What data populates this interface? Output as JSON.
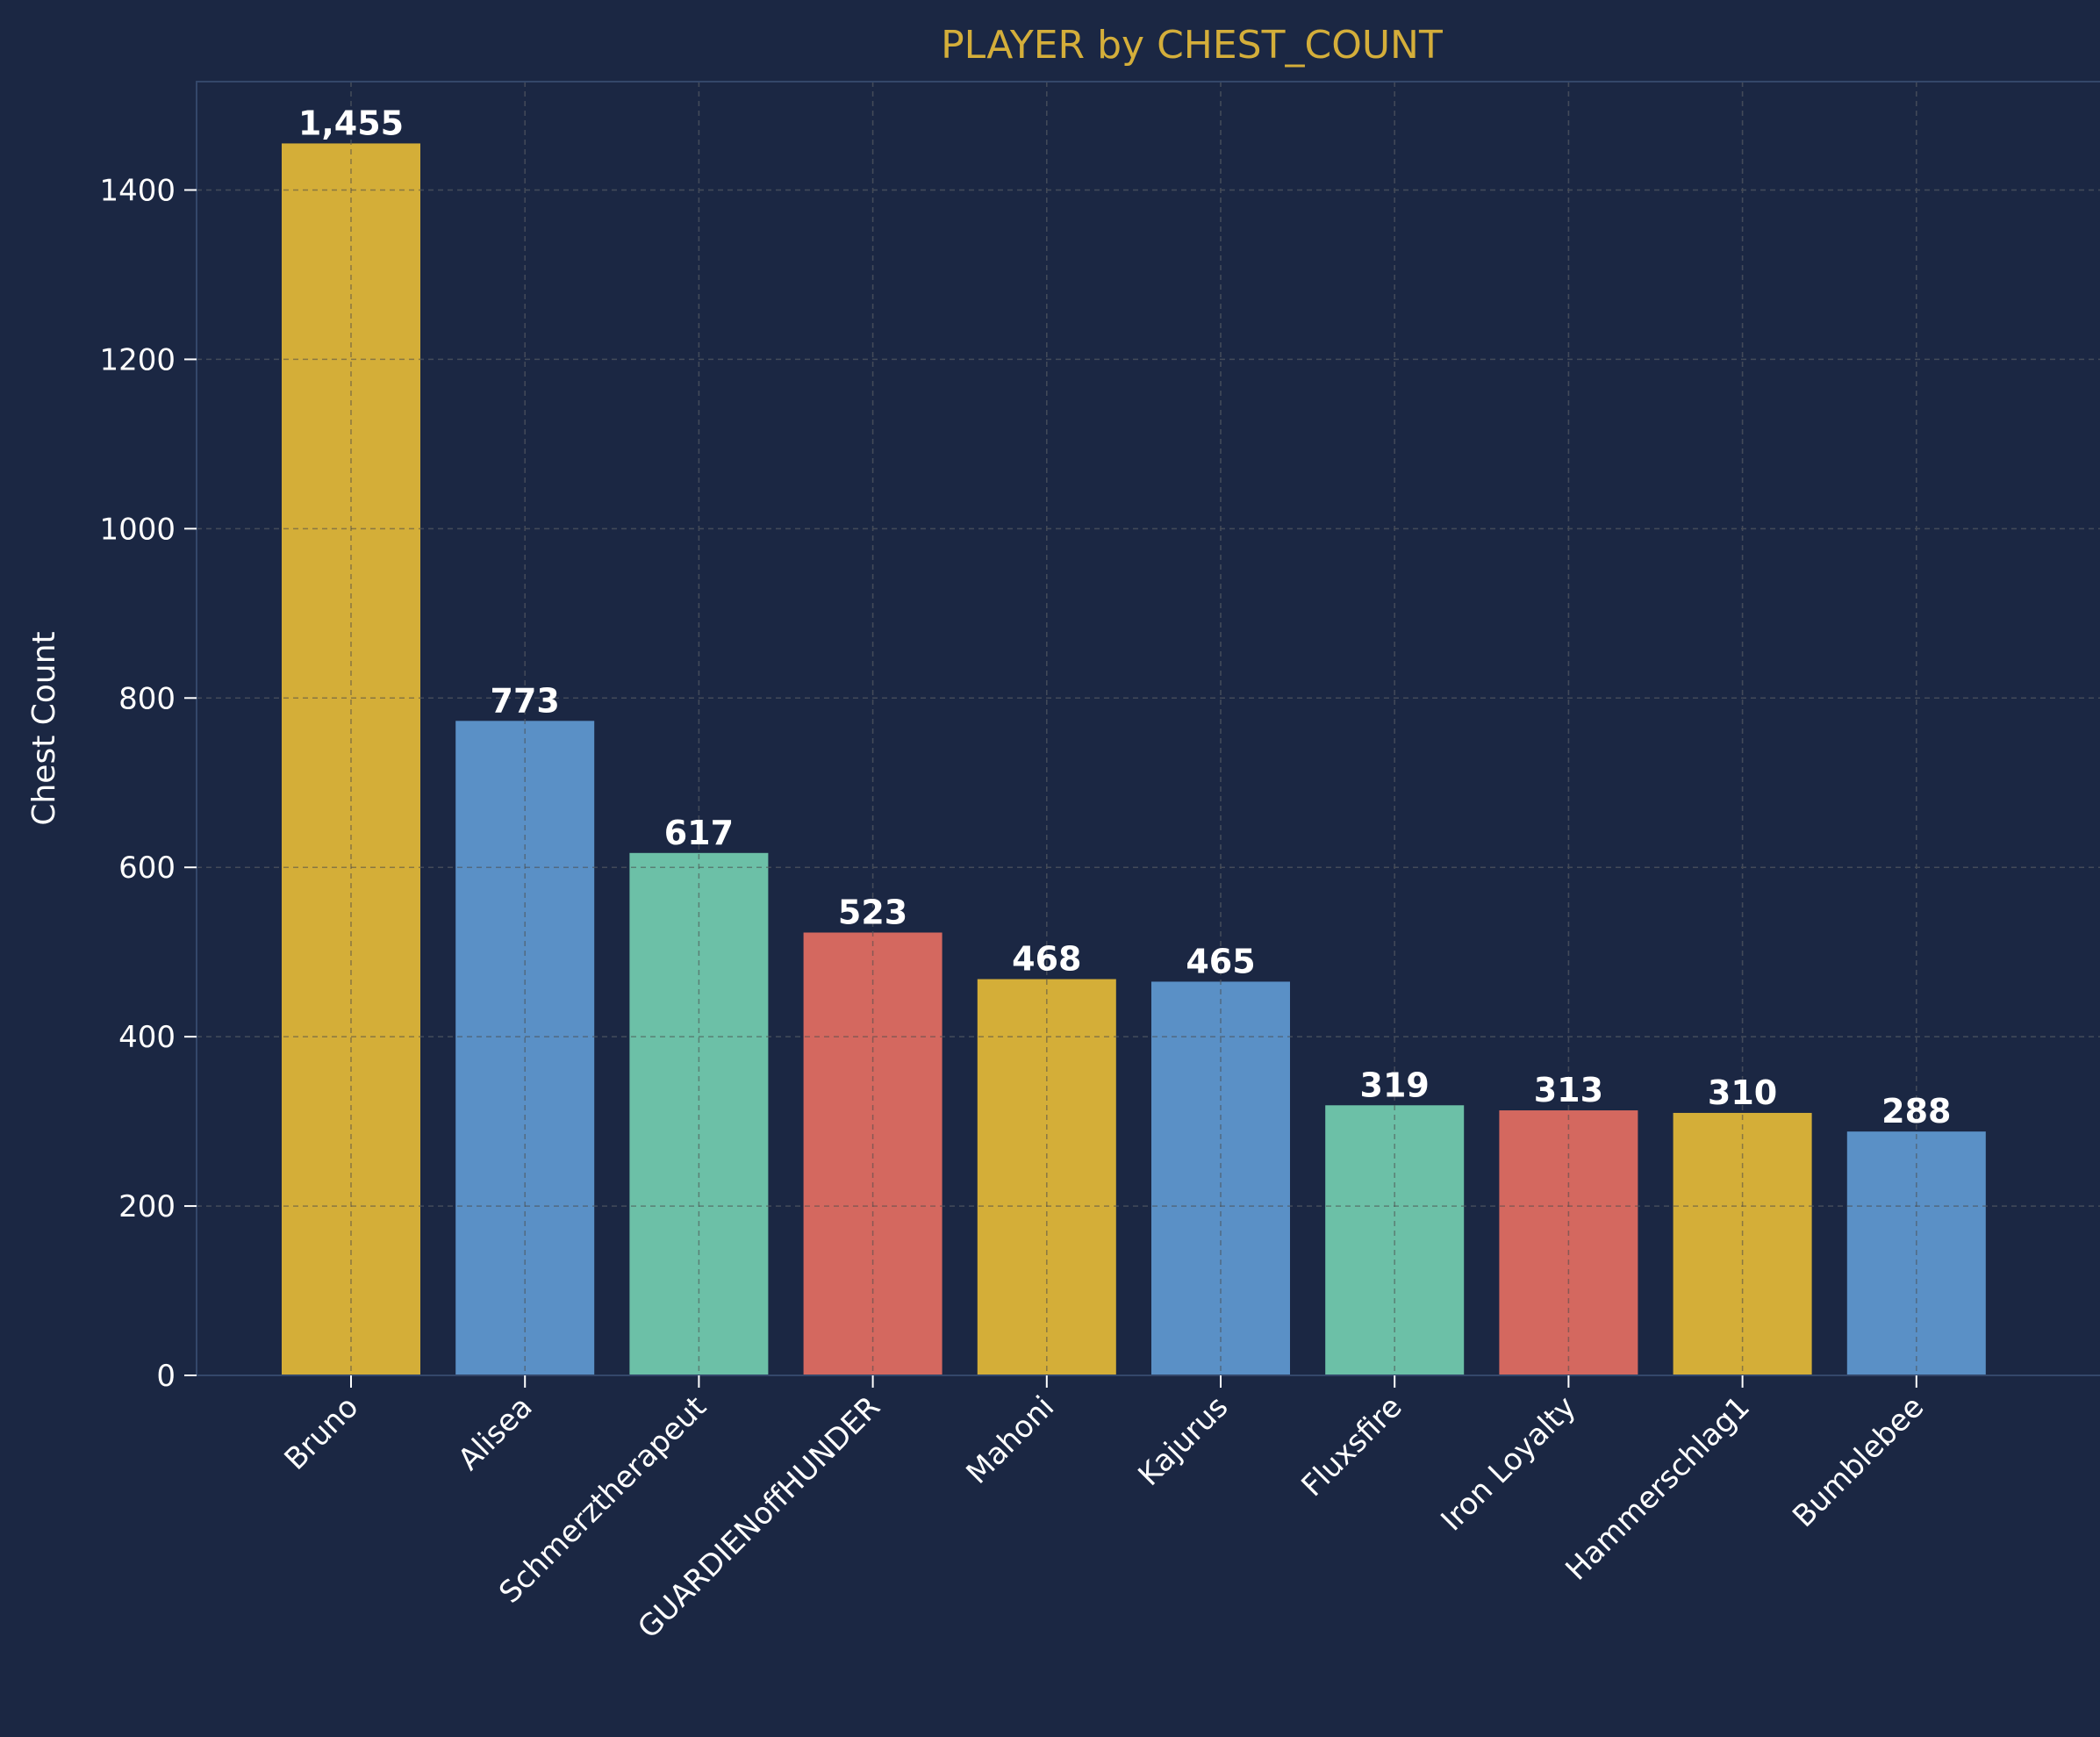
{
  "chart_data": {
    "type": "bar",
    "title": "PLAYER by CHEST_COUNT",
    "xlabel": "",
    "ylabel": "Chest Count",
    "categories": [
      "Bruno",
      "Alisea",
      "Schmerztherapeut",
      "GUARDIENoffHUNDER",
      "Mahoni",
      "Kajurus",
      "Fluxsfire",
      "Iron Loyalty",
      "Hammerschlag1",
      "Bumblebee"
    ],
    "values": [
      1455,
      773,
      617,
      523,
      468,
      465,
      319,
      313,
      310,
      288
    ],
    "value_labels": [
      "1,455",
      "773",
      "617",
      "523",
      "468",
      "465",
      "319",
      "313",
      "310",
      "288"
    ],
    "bar_colors": [
      "#d4ae38",
      "#5a90c6",
      "#6cc0a7",
      "#d4685f",
      "#d4ae38",
      "#5a90c6",
      "#6cc0a7",
      "#d4685f",
      "#d4ae38",
      "#5a90c6"
    ],
    "ylim": [
      0,
      1528
    ],
    "yticks": [
      0,
      200,
      400,
      600,
      800,
      1000,
      1200,
      1400
    ],
    "grid": true,
    "legend": "none"
  },
  "colors": {
    "background": "#1b2743",
    "title": "#d4ae3a",
    "text": "#ffffff",
    "axis": "#34476a",
    "grid": "#3a4a68"
  }
}
